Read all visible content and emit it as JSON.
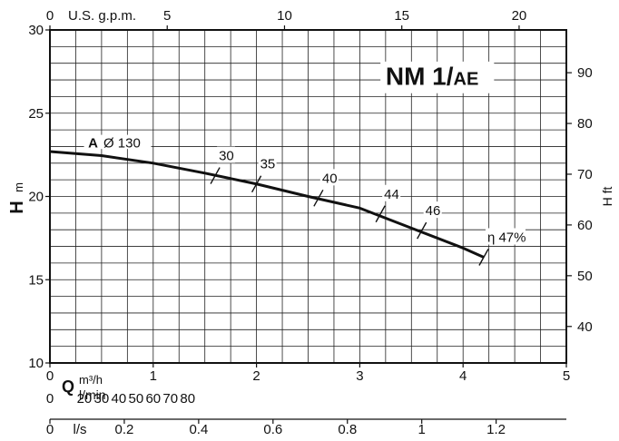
{
  "chart_data": {
    "type": "line",
    "title": "NM 1/AE",
    "title_main": "NM 1/",
    "title_sub": "AE",
    "curve_label_letter": "A",
    "curve_label_diameter": "Ø 130",
    "series": [
      {
        "x": [
          0,
          0.5,
          1.0,
          1.5,
          2.0,
          2.5,
          3.0,
          3.5,
          4.0,
          4.2
        ],
        "values": [
          22.7,
          22.45,
          22.0,
          21.4,
          20.75,
          20.0,
          19.3,
          18.1,
          16.9,
          16.35
        ]
      }
    ],
    "efficiency_marks": [
      {
        "label": "30",
        "x": 1.6,
        "y": 21.25
      },
      {
        "label": "35",
        "x": 2.0,
        "y": 20.75
      },
      {
        "label": "40",
        "x": 2.6,
        "y": 19.9
      },
      {
        "label": "44",
        "x": 3.2,
        "y": 18.95
      },
      {
        "label": "46",
        "x": 3.6,
        "y": 17.95
      },
      {
        "label": "η 47%",
        "x": 4.2,
        "y": 16.35
      }
    ],
    "xlim": [
      0,
      5
    ],
    "ylim": [
      10,
      30
    ],
    "x_ticks": [
      0,
      1,
      2,
      3,
      4,
      5
    ],
    "y_ticks": [
      10,
      15,
      20,
      25,
      30
    ],
    "axes": {
      "left_title": "H",
      "left_unit": "m",
      "right_title": "H ft",
      "right_ticks": [
        40,
        50,
        60,
        70,
        80,
        90
      ],
      "top_unit": "U.S. g.p.m.",
      "top_ticks": [
        0,
        5,
        10,
        15,
        20
      ],
      "bottom_symbol": "Q",
      "bottom_unit": "m³/h",
      "lmin_unit": "l/min",
      "lmin_ticks": [
        0,
        20,
        30,
        40,
        50,
        60,
        70,
        80
      ],
      "ls_unit": "l/s",
      "ls_ticks": [
        "0.2",
        "0.4",
        "0.6",
        "0.8",
        "1",
        "1.2"
      ],
      "ls_zero": "0"
    },
    "grid": true
  }
}
